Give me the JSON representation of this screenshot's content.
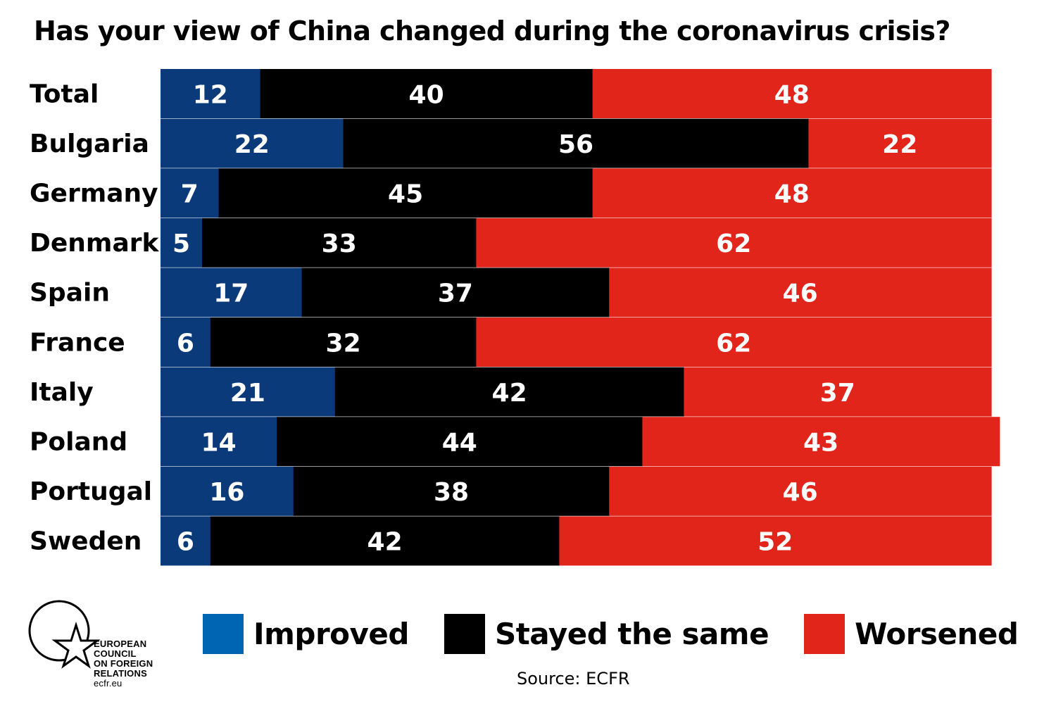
{
  "title": "Has your view of China changed during the coronavirus crisis?",
  "colors": {
    "improved": "#0b3a7a",
    "same": "#000000",
    "worsened": "#e1251b",
    "legend_improved": "#0066b3"
  },
  "chart_data": {
    "type": "bar",
    "orientation": "horizontal",
    "stacked": true,
    "categories": [
      "Total",
      "Bulgaria",
      "Germany",
      "Denmark",
      "Spain",
      "France",
      "Italy",
      "Poland",
      "Portugal",
      "Sweden"
    ],
    "series": [
      {
        "name": "Improved",
        "values": [
          12,
          22,
          7,
          5,
          17,
          6,
          21,
          14,
          16,
          6
        ]
      },
      {
        "name": "Stayed the same",
        "values": [
          40,
          56,
          45,
          33,
          37,
          32,
          42,
          44,
          38,
          42
        ]
      },
      {
        "name": "Worsened",
        "values": [
          48,
          22,
          48,
          62,
          46,
          62,
          37,
          43,
          46,
          52
        ]
      }
    ],
    "title": "Has your view of China changed during the coronavirus crisis?",
    "legend_position": "bottom",
    "data_labels": true
  },
  "legend": [
    "Improved",
    "Stayed the same",
    "Worsened"
  ],
  "source": "Source: ECFR",
  "logo": {
    "lines": [
      "EUROPEAN",
      "COUNCIL",
      "ON FOREIGN",
      "RELATIONS"
    ],
    "url": "ecfr.eu"
  }
}
